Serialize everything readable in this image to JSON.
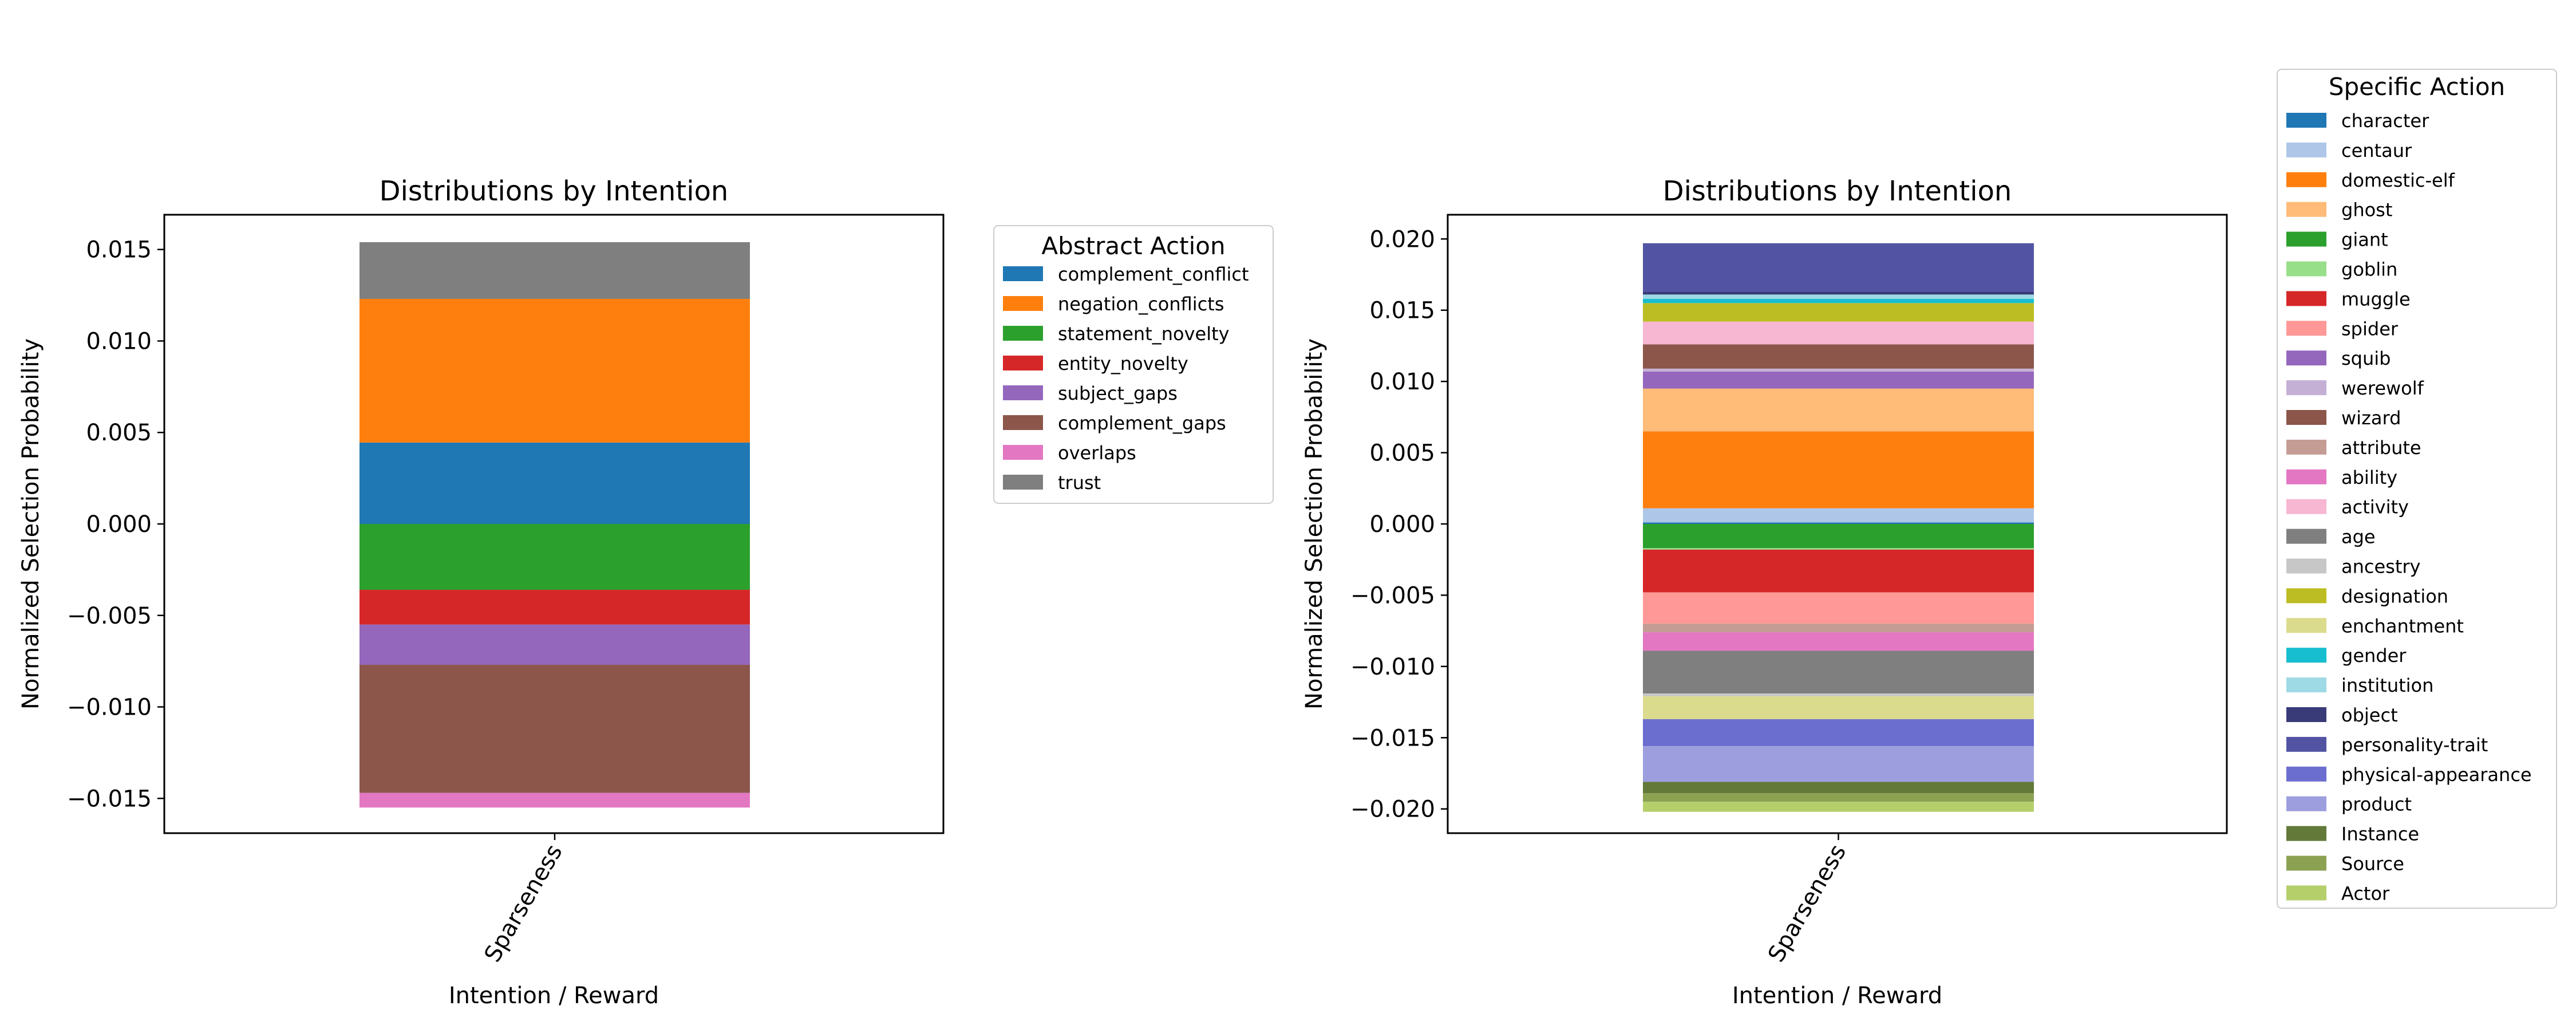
{
  "chart_data": [
    {
      "type": "bar",
      "stacked": true,
      "diverging": true,
      "title": "Distributions by Intention",
      "xlabel": "Intention / Reward",
      "ylabel": "Normalized Selection Probability",
      "categories": [
        "Sparseness"
      ],
      "ylim": [
        -0.0169,
        0.0169
      ],
      "yticks": [
        0.015,
        0.01,
        0.005,
        0.0,
        -0.005,
        -0.01,
        -0.015
      ],
      "ytick_labels": [
        "0.015",
        "0.010",
        "0.005",
        "0.000",
        "−0.005",
        "−0.010",
        "−0.015"
      ],
      "legend": {
        "title": "Abstract Action",
        "position": "outside-right"
      },
      "series": [
        {
          "name": "complement_conflict",
          "values": [
            0.00445
          ],
          "color": "#1f77b4"
        },
        {
          "name": "negation_conflicts",
          "values": [
            0.00785
          ],
          "color": "#ff7f0e"
        },
        {
          "name": "statement_novelty",
          "values": [
            -0.0036
          ],
          "color": "#2ca02c"
        },
        {
          "name": "entity_novelty",
          "values": [
            -0.0019
          ],
          "color": "#d62728"
        },
        {
          "name": "subject_gaps",
          "values": [
            -0.0022
          ],
          "color": "#9467bd"
        },
        {
          "name": "complement_gaps",
          "values": [
            -0.007
          ],
          "color": "#8c564b"
        },
        {
          "name": "overlaps",
          "values": [
            -0.0008
          ],
          "color": "#e377c2"
        },
        {
          "name": "trust",
          "values": [
            0.0031
          ],
          "color": "#7f7f7f"
        }
      ]
    },
    {
      "type": "bar",
      "stacked": true,
      "diverging": true,
      "title": "Distributions by Intention",
      "xlabel": "Intention / Reward",
      "ylabel": "Normalized Selection Probability",
      "categories": [
        "Sparseness"
      ],
      "ylim": [
        -0.0217,
        0.0217
      ],
      "yticks": [
        0.02,
        0.015,
        0.01,
        0.005,
        0.0,
        -0.005,
        -0.01,
        -0.015,
        -0.02
      ],
      "ytick_labels": [
        "0.020",
        "0.015",
        "0.010",
        "0.005",
        "0.000",
        "−0.005",
        "−0.010",
        "−0.015",
        "−0.020"
      ],
      "legend": {
        "title": "Specific Action",
        "position": "outside-right"
      },
      "series": [
        {
          "name": "character",
          "values": [
            0.0001
          ],
          "color": "#1f77b4"
        },
        {
          "name": "centaur",
          "values": [
            0.001
          ],
          "color": "#aec7e8"
        },
        {
          "name": "domestic-elf",
          "values": [
            0.0054
          ],
          "color": "#ff7f0e"
        },
        {
          "name": "ghost",
          "values": [
            0.003
          ],
          "color": "#ffbb78"
        },
        {
          "name": "giant",
          "values": [
            -0.0017
          ],
          "color": "#2ca02c"
        },
        {
          "name": "goblin",
          "values": [
            -0.0001
          ],
          "color": "#98df8a"
        },
        {
          "name": "muggle",
          "values": [
            -0.003
          ],
          "color": "#d62728"
        },
        {
          "name": "spider",
          "values": [
            -0.0022
          ],
          "color": "#ff9896"
        },
        {
          "name": "squib",
          "values": [
            0.0012
          ],
          "color": "#9467bd"
        },
        {
          "name": "werewolf",
          "values": [
            0.0002
          ],
          "color": "#c5b0d5"
        },
        {
          "name": "wizard",
          "values": [
            0.0017
          ],
          "color": "#8c564b"
        },
        {
          "name": "attribute",
          "values": [
            -0.0006
          ],
          "color": "#c49c94"
        },
        {
          "name": "ability",
          "values": [
            -0.0013
          ],
          "color": "#e377c2"
        },
        {
          "name": "activity",
          "values": [
            0.0016
          ],
          "color": "#f7b6d2"
        },
        {
          "name": "age",
          "values": [
            -0.003
          ],
          "color": "#7f7f7f"
        },
        {
          "name": "ancestry",
          "values": [
            -0.0002
          ],
          "color": "#c7c7c7"
        },
        {
          "name": "designation",
          "values": [
            0.0013
          ],
          "color": "#bcbd22"
        },
        {
          "name": "enchantment",
          "values": [
            -0.0016
          ],
          "color": "#dbdb8d"
        },
        {
          "name": "gender",
          "values": [
            0.0003
          ],
          "color": "#17becf"
        },
        {
          "name": "institution",
          "values": [
            0.0003
          ],
          "color": "#9edae5"
        },
        {
          "name": "object",
          "values": [
            0.0002
          ],
          "color": "#393b79"
        },
        {
          "name": "personality-trait",
          "values": [
            0.0034
          ],
          "color": "#5254a3"
        },
        {
          "name": "physical-appearance",
          "values": [
            -0.0019
          ],
          "color": "#6b6ecf"
        },
        {
          "name": "product",
          "values": [
            -0.0025
          ],
          "color": "#9c9ede"
        },
        {
          "name": "Instance",
          "values": [
            -0.0008
          ],
          "color": "#637939"
        },
        {
          "name": "Source",
          "values": [
            -0.0006
          ],
          "color": "#8ca252"
        },
        {
          "name": "Actor",
          "values": [
            -0.0007
          ],
          "color": "#b5cf6b"
        }
      ]
    }
  ]
}
